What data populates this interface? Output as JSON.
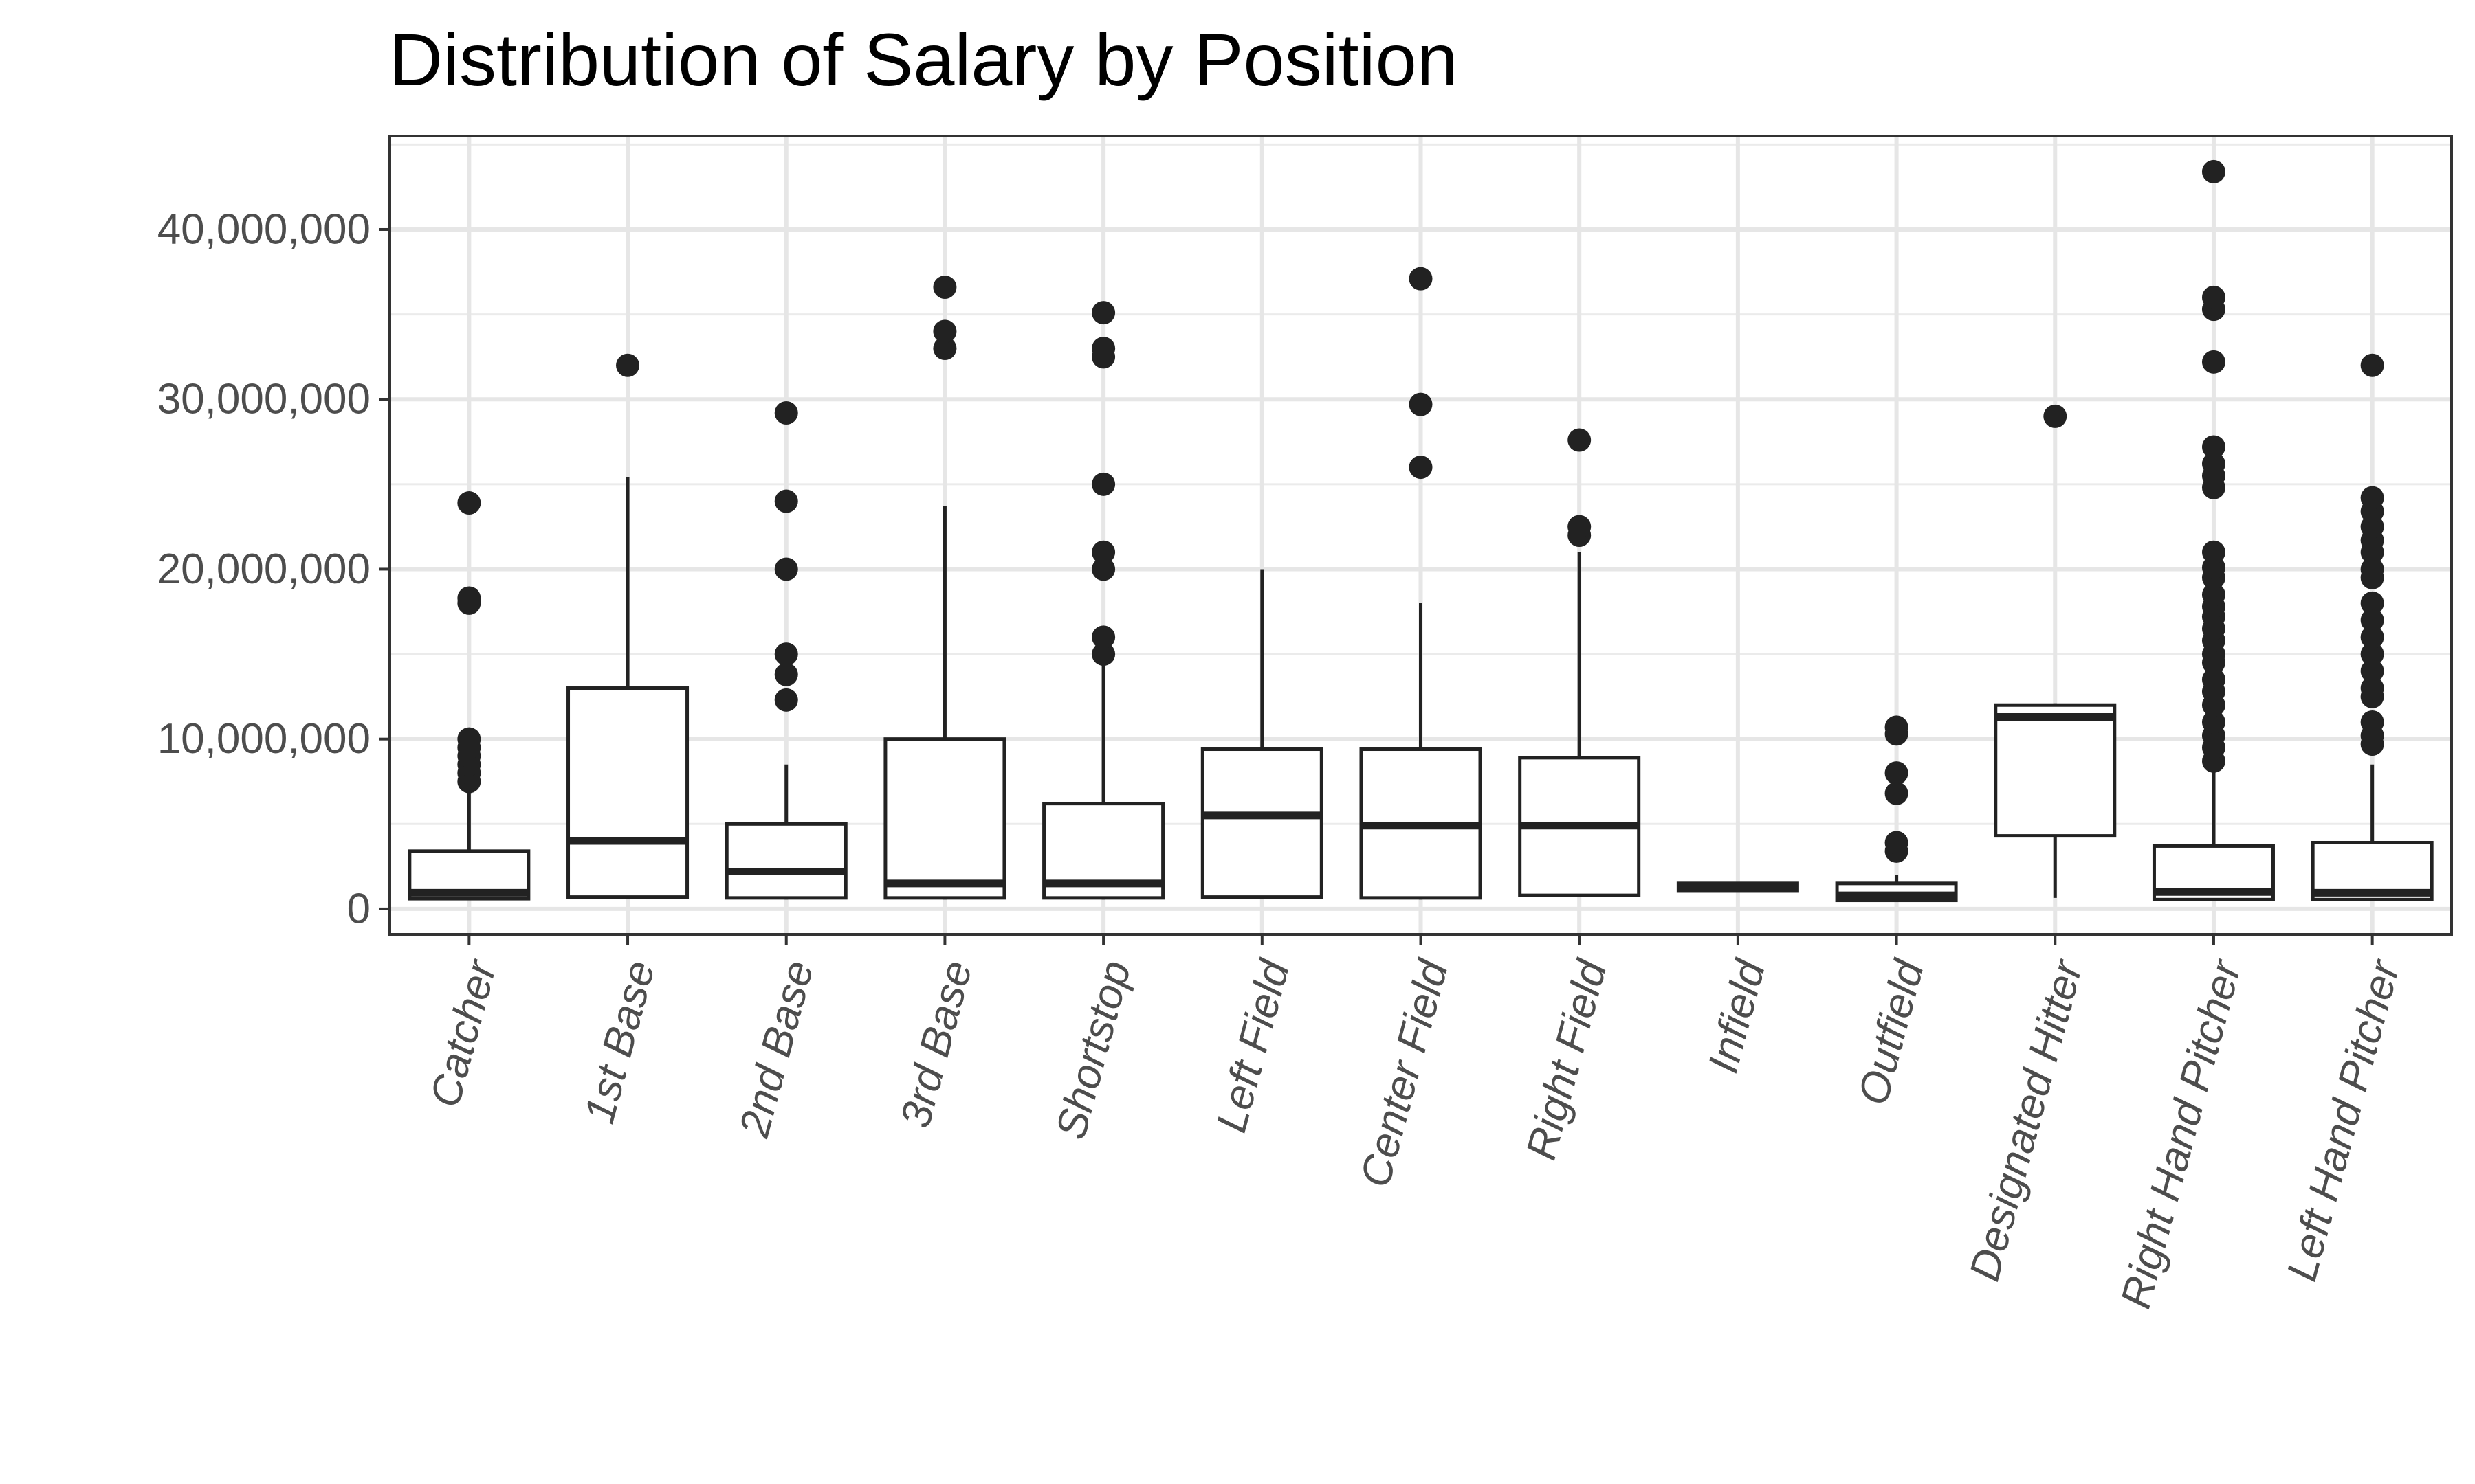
{
  "chart_data": {
    "type": "boxplot",
    "title": "Distribution of Salary by Position",
    "xlabel": "",
    "ylabel": "",
    "ylim": [
      -1500000,
      45500000
    ],
    "y_ticks": [
      {
        "value": 0,
        "label": "0"
      },
      {
        "value": 10000000,
        "label": "10,000,000"
      },
      {
        "value": 20000000,
        "label": "20,000,000"
      },
      {
        "value": 30000000,
        "label": "30,000,000"
      },
      {
        "value": 40000000,
        "label": "40,000,000"
      }
    ],
    "grid": true,
    "categories": [
      "Catcher",
      "1st Base",
      "2nd Base",
      "3rd Base",
      "Shortstop",
      "Left Field",
      "Center Field",
      "Right Field",
      "Infield",
      "Outfield",
      "Designated Hitter",
      "Right Hand Pitcher",
      "Left Hand Pitcher"
    ],
    "boxes": [
      {
        "whisker_low": 550000,
        "q1": 600000,
        "median": 950000,
        "q3": 3400000,
        "whisker_high": 7000000,
        "outliers": [
          7500000,
          8000000,
          8500000,
          9000000,
          9500000,
          10000000,
          18000000,
          18300000,
          23900000
        ]
      },
      {
        "whisker_low": 600000,
        "q1": 700000,
        "median": 4000000,
        "q3": 13000000,
        "whisker_high": 25400000,
        "outliers": [
          32000000
        ]
      },
      {
        "whisker_low": 550000,
        "q1": 650000,
        "median": 2200000,
        "q3": 5000000,
        "whisker_high": 8500000,
        "outliers": [
          12300000,
          13800000,
          15000000,
          20000000,
          24000000,
          29200000
        ]
      },
      {
        "whisker_low": 550000,
        "q1": 650000,
        "median": 1500000,
        "q3": 10000000,
        "whisker_high": 23700000,
        "outliers": [
          33000000,
          34000000,
          36600000
        ]
      },
      {
        "whisker_low": 550000,
        "q1": 650000,
        "median": 1500000,
        "q3": 6200000,
        "whisker_high": 15000000,
        "outliers": [
          15000000,
          16000000,
          20000000,
          21000000,
          25000000,
          32500000,
          33000000,
          35100000
        ]
      },
      {
        "whisker_low": 600000,
        "q1": 700000,
        "median": 5500000,
        "q3": 9400000,
        "whisker_high": 20000000,
        "outliers": []
      },
      {
        "whisker_low": 550000,
        "q1": 650000,
        "median": 4900000,
        "q3": 9400000,
        "whisker_high": 18000000,
        "outliers": [
          26000000,
          29700000,
          37100000
        ]
      },
      {
        "whisker_low": 750000,
        "q1": 800000,
        "median": 4900000,
        "q3": 8900000,
        "whisker_high": 21000000,
        "outliers": [
          22000000,
          22500000,
          27600000
        ]
      },
      {
        "whisker_low": 1000000,
        "q1": 1050000,
        "median": 1250000,
        "q3": 1500000,
        "whisker_high": 1550000,
        "outliers": []
      },
      {
        "whisker_low": 450000,
        "q1": 500000,
        "median": 800000,
        "q3": 1500000,
        "whisker_high": 2000000,
        "outliers": [
          3400000,
          3900000,
          6800000,
          8000000,
          10300000,
          10700000
        ]
      },
      {
        "whisker_low": 650000,
        "q1": 4300000,
        "median": 11300000,
        "q3": 12000000,
        "whisker_high": 12100000,
        "outliers": [
          29000000
        ]
      },
      {
        "whisker_low": 500000,
        "q1": 550000,
        "median": 1000000,
        "q3": 3700000,
        "whisker_high": 8500000,
        "outliers": [
          8700000,
          9500000,
          10200000,
          11000000,
          12000000,
          12800000,
          13500000,
          14500000,
          15000000,
          15800000,
          16500000,
          17200000,
          17800000,
          18500000,
          19500000,
          20100000,
          21000000,
          24800000,
          25500000,
          26200000,
          27200000,
          32200000,
          35300000,
          36000000,
          43400000
        ]
      },
      {
        "whisker_low": 500000,
        "q1": 550000,
        "median": 950000,
        "q3": 3900000,
        "whisker_high": 8500000,
        "outliers": [
          9700000,
          10200000,
          11000000,
          12500000,
          13000000,
          14000000,
          15000000,
          16000000,
          17000000,
          18000000,
          19500000,
          20000000,
          21000000,
          21700000,
          22500000,
          23400000,
          24200000,
          32000000
        ]
      }
    ]
  }
}
